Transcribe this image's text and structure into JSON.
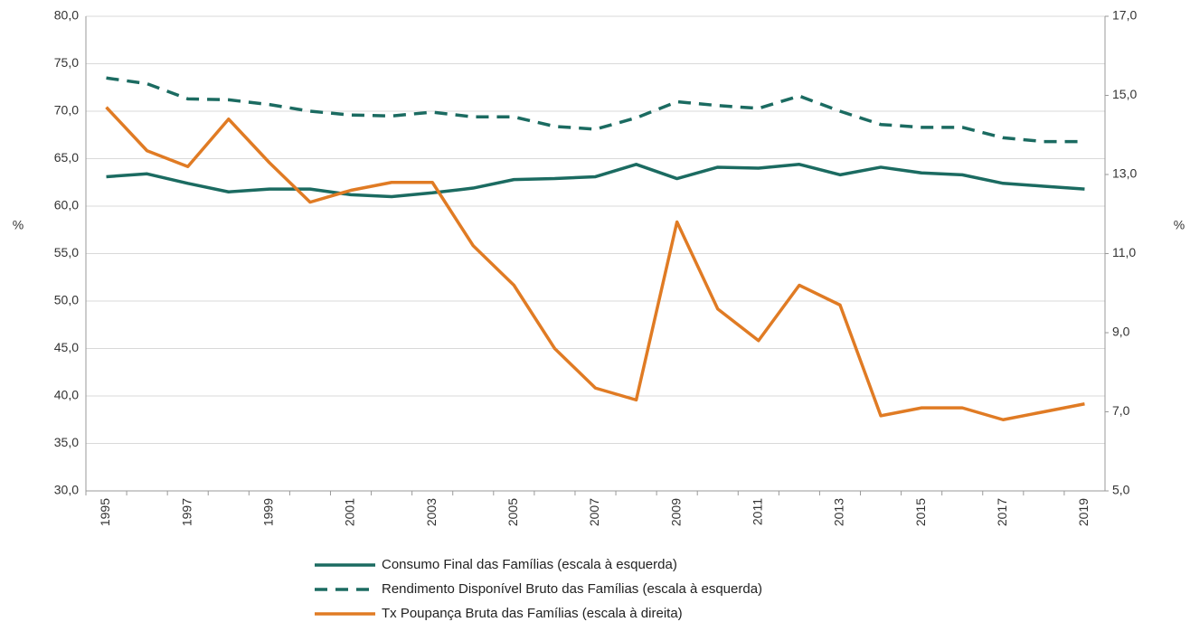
{
  "chart_data": {
    "type": "line",
    "categories": [
      "1995",
      null,
      "1997",
      null,
      "1999",
      null,
      "2001",
      null,
      "2003",
      null,
      "2005",
      null,
      "2007",
      null,
      "2009",
      null,
      "2011",
      null,
      "2013",
      null,
      "2015",
      null,
      "2017",
      null,
      "2019"
    ],
    "ylabel": "%",
    "y2label": "%",
    "ylim": [
      30,
      80
    ],
    "yticks": [
      {
        "value": 30,
        "label": "30,0"
      },
      {
        "value": 35,
        "label": "35,0"
      },
      {
        "value": 40,
        "label": "40,0"
      },
      {
        "value": 45,
        "label": "45,0"
      },
      {
        "value": 50,
        "label": "50,0"
      },
      {
        "value": 55,
        "label": "55,0"
      },
      {
        "value": 60,
        "label": "60,0"
      },
      {
        "value": 65,
        "label": "65,0"
      },
      {
        "value": 70,
        "label": "70,0"
      },
      {
        "value": 75,
        "label": "75,0"
      },
      {
        "value": 80,
        "label": "80,0"
      }
    ],
    "y2lim": [
      5,
      17
    ],
    "y2ticks": [
      {
        "value": 5,
        "label": "5,0"
      },
      {
        "value": 7,
        "label": "7,0"
      },
      {
        "value": 9,
        "label": "9,0"
      },
      {
        "value": 11,
        "label": "11,0"
      },
      {
        "value": 13,
        "label": "13,0"
      },
      {
        "value": 15,
        "label": "15,0"
      },
      {
        "value": 17,
        "label": "17,0"
      }
    ],
    "grid": true,
    "legend": "bottom",
    "series": [
      {
        "name": "Consumo Final das Famílias (escala à esquerda)",
        "color": "#1b6b61",
        "style": "solid",
        "values": [
          63.1,
          63.4,
          62.4,
          61.5,
          61.8,
          61.8,
          61.2,
          61.0,
          61.4,
          61.9,
          62.8,
          62.9,
          63.1,
          64.4,
          62.9,
          64.1,
          64.0,
          64.4,
          63.3,
          64.1,
          63.5,
          63.3,
          62.4,
          62.1,
          61.8
        ]
      },
      {
        "name": "Rendimento Disponível Bruto das Famílias (escala à esquerda)",
        "color": "#1b6b61",
        "style": "dashed",
        "values": [
          73.5,
          72.9,
          71.3,
          71.2,
          70.7,
          70.0,
          69.6,
          69.5,
          69.9,
          69.4,
          69.4,
          68.4,
          68.1,
          69.3,
          71.0,
          70.6,
          70.3,
          71.6,
          70.0,
          68.6,
          68.3,
          68.3,
          67.2,
          66.8,
          66.8
        ]
      },
      {
        "name": "Tx Poupança Bruta das Famílias (escala à direita)",
        "color": "#e07b24",
        "style": "solid",
        "axis": "y2",
        "values": [
          14.7,
          13.6,
          13.2,
          14.4,
          13.3,
          12.3,
          12.6,
          12.8,
          12.8,
          11.2,
          10.2,
          8.6,
          7.6,
          7.3,
          11.8,
          9.6,
          8.8,
          10.2,
          9.7,
          6.9,
          7.1,
          7.1,
          6.8,
          7.0,
          7.2
        ]
      }
    ]
  }
}
